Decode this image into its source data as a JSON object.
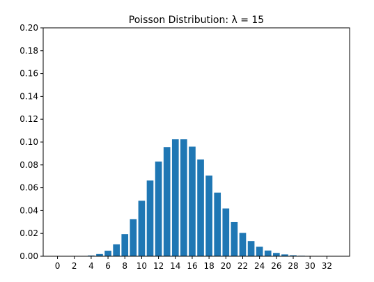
{
  "chart_data": {
    "type": "bar",
    "title": "Poisson Distribution: λ = 15",
    "xlabel": "",
    "ylabel": "",
    "x": [
      0,
      1,
      2,
      3,
      4,
      5,
      6,
      7,
      8,
      9,
      10,
      11,
      12,
      13,
      14,
      15,
      16,
      17,
      18,
      19,
      20,
      21,
      22,
      23,
      24,
      25,
      26,
      27,
      28,
      29,
      30,
      31,
      32,
      33
    ],
    "values": [
      3e-07,
      4.6e-06,
      3.44e-05,
      0.000172,
      0.000645,
      0.00194,
      0.00484,
      0.0104,
      0.0194,
      0.0324,
      0.0486,
      0.0663,
      0.0829,
      0.0956,
      0.1024,
      0.1024,
      0.096,
      0.0847,
      0.0706,
      0.0557,
      0.0418,
      0.0299,
      0.0204,
      0.0133,
      0.0083,
      0.005,
      0.0029,
      0.0016,
      0.00085,
      0.00044,
      0.00022,
      0.00011,
      5e-05,
      2e-05
    ],
    "xticks": [
      "0",
      "2",
      "4",
      "6",
      "8",
      "10",
      "12",
      "14",
      "16",
      "18",
      "20",
      "22",
      "24",
      "26",
      "28",
      "30",
      "32"
    ],
    "yticks": [
      "0.00",
      "0.02",
      "0.04",
      "0.06",
      "0.08",
      "0.10",
      "0.12",
      "0.14",
      "0.16",
      "0.18",
      "0.20"
    ],
    "xlim": [
      -1.7,
      34.7
    ],
    "ylim": [
      0,
      0.2
    ],
    "bar_color": "#1f77b4",
    "grid": false,
    "legend": "none"
  }
}
